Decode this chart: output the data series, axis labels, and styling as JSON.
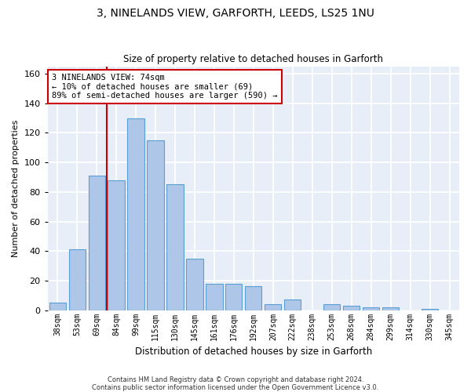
{
  "title": "3, NINELANDS VIEW, GARFORTH, LEEDS, LS25 1NU",
  "subtitle": "Size of property relative to detached houses in Garforth",
  "xlabel": "Distribution of detached houses by size in Garforth",
  "ylabel": "Number of detached properties",
  "categories": [
    "38sqm",
    "53sqm",
    "69sqm",
    "84sqm",
    "99sqm",
    "115sqm",
    "130sqm",
    "145sqm",
    "161sqm",
    "176sqm",
    "192sqm",
    "207sqm",
    "222sqm",
    "238sqm",
    "253sqm",
    "268sqm",
    "284sqm",
    "299sqm",
    "314sqm",
    "330sqm",
    "345sqm"
  ],
  "values": [
    5,
    41,
    91,
    88,
    130,
    115,
    85,
    35,
    18,
    18,
    16,
    4,
    7,
    0,
    4,
    3,
    2,
    2,
    0,
    1,
    0
  ],
  "bar_color": "#aec6e8",
  "bar_edge_color": "#5a9fd4",
  "bg_color": "#e8eef8",
  "grid_color": "#ffffff",
  "vline_color": "#cc0000",
  "annotation_line1": "3 NINELANDS VIEW: 74sqm",
  "annotation_line2": "← 10% of detached houses are smaller (69)",
  "annotation_line3": "89% of semi-detached houses are larger (590) →",
  "annotation_box_color": "#cc0000",
  "ylim": [
    0,
    165
  ],
  "yticks": [
    0,
    20,
    40,
    60,
    80,
    100,
    120,
    140,
    160
  ],
  "footnote1": "Contains HM Land Registry data © Crown copyright and database right 2024.",
  "footnote2": "Contains public sector information licensed under the Open Government Licence v3.0."
}
